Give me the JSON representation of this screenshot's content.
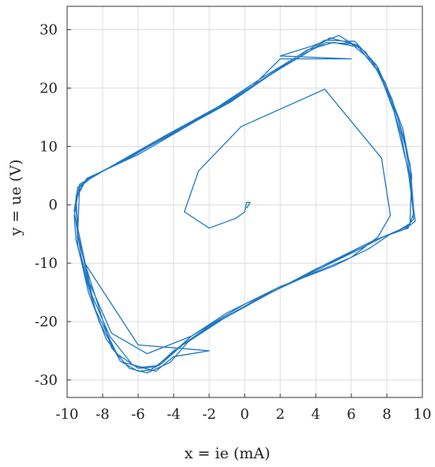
{
  "chart_data": {
    "type": "line",
    "title": "",
    "xlabel": "x = ie (mA)",
    "ylabel": "y = ue (V)",
    "xlim": [
      -10,
      10
    ],
    "ylim": [
      -33,
      34
    ],
    "xticks": [
      -10,
      -8,
      -6,
      -4,
      -2,
      0,
      2,
      4,
      6,
      8,
      10
    ],
    "yticks": [
      -30,
      -20,
      -10,
      0,
      10,
      20,
      30
    ],
    "grid": true,
    "series": [
      {
        "color": "#1f77c4",
        "points": [
          [
            0.1,
            -0.6
          ],
          [
            0.3,
            0.4
          ],
          [
            0.1,
            0.4
          ],
          [
            0.0,
            -1.2
          ],
          [
            -0.5,
            -2.3
          ],
          [
            -2.0,
            -4.0
          ],
          [
            -3.4,
            -1.2
          ],
          [
            -2.6,
            5.8
          ],
          [
            -0.2,
            13.4
          ],
          [
            4.5,
            19.8
          ],
          [
            7.7,
            8.0
          ],
          [
            8.2,
            -1.8
          ],
          [
            7.5,
            -5.5
          ],
          [
            6.0,
            -9.0
          ],
          [
            4.0,
            -11.5
          ],
          [
            0.0,
            -17.0
          ],
          [
            -3.0,
            -22.5
          ],
          [
            -5.5,
            -25.5
          ],
          [
            -7.5,
            -22.0
          ],
          [
            -8.8,
            -13.0
          ],
          [
            -9.4,
            -5.0
          ],
          [
            -9.3,
            3.0
          ],
          [
            -8.5,
            5.0
          ],
          [
            -6.5,
            8.0
          ],
          [
            -4.0,
            12.5
          ],
          [
            -1.0,
            17.5
          ],
          [
            1.5,
            22.5
          ],
          [
            3.5,
            26.5
          ],
          [
            5.0,
            27.8
          ],
          [
            6.5,
            27.0
          ],
          [
            7.5,
            23.5
          ],
          [
            8.3,
            18.0
          ],
          [
            9.0,
            11.0
          ],
          [
            9.4,
            3.0
          ],
          [
            9.5,
            -2.5
          ],
          [
            9.1,
            -3.8
          ],
          [
            8.3,
            -4.8
          ],
          [
            7.0,
            -7.5
          ],
          [
            5.0,
            -10.5
          ],
          [
            2.0,
            -14.0
          ],
          [
            -1.0,
            -18.5
          ],
          [
            -3.0,
            -22.5
          ],
          [
            -4.5,
            -26.5
          ],
          [
            -5.3,
            -28.3
          ],
          [
            -6.0,
            -28.5
          ],
          [
            -7.0,
            -26.8
          ],
          [
            -8.2,
            -20.0
          ],
          [
            -9.0,
            -12.0
          ],
          [
            -9.5,
            -6.0
          ],
          [
            -9.6,
            -2.0
          ],
          [
            -9.3,
            3.5
          ],
          [
            -8.7,
            4.6
          ],
          [
            -6.8,
            7.8
          ],
          [
            -4.2,
            12.0
          ],
          [
            -1.2,
            17.0
          ],
          [
            1.3,
            22.0
          ],
          [
            3.3,
            25.8
          ],
          [
            4.6,
            27.8
          ],
          [
            6.0,
            27.6
          ],
          [
            7.2,
            24.5
          ],
          [
            8.1,
            19.0
          ],
          [
            8.8,
            12.0
          ],
          [
            9.3,
            4.0
          ],
          [
            9.6,
            -2.8
          ],
          [
            9.0,
            -4.2
          ],
          [
            7.8,
            -5.5
          ],
          [
            6.2,
            -8.0
          ],
          [
            3.5,
            -12.0
          ],
          [
            0.5,
            -16.5
          ],
          [
            -2.0,
            -20.8
          ],
          [
            -4.0,
            -25.0
          ],
          [
            -5.0,
            -27.8
          ],
          [
            -6.0,
            -28.0
          ],
          [
            -7.2,
            -25.5
          ],
          [
            -8.4,
            -18.0
          ],
          [
            -9.2,
            -9.0
          ],
          [
            -9.6,
            -1.0
          ],
          [
            -9.4,
            3.0
          ],
          [
            -8.8,
            4.3
          ],
          [
            -7.0,
            7.5
          ],
          [
            -4.5,
            11.8
          ],
          [
            -1.5,
            16.8
          ],
          [
            1.0,
            21.8
          ],
          [
            3.0,
            25.5
          ],
          [
            4.5,
            28.2
          ],
          [
            6.2,
            28.0
          ],
          [
            7.4,
            24.0
          ],
          [
            8.4,
            16.0
          ],
          [
            9.2,
            6.0
          ],
          [
            9.5,
            -1.5
          ],
          [
            9.2,
            -4.0
          ],
          [
            8.0,
            -5.2
          ],
          [
            6.5,
            -7.5
          ],
          [
            4.0,
            -11.0
          ],
          [
            1.0,
            -15.8
          ],
          [
            -1.5,
            -20.0
          ],
          [
            -3.5,
            -24.0
          ],
          [
            -4.8,
            -27.5
          ],
          [
            -5.8,
            -27.8
          ],
          [
            -6.8,
            -27.0
          ],
          [
            -7.8,
            -23.0
          ],
          [
            -8.8,
            -15.0
          ],
          [
            -9.4,
            -7.0
          ],
          [
            -9.5,
            1.0
          ],
          [
            -8.9,
            4.5
          ],
          [
            -6.0,
            8.6
          ],
          [
            -2.5,
            14.8
          ],
          [
            0.5,
            20.5
          ],
          [
            2.0,
            25.0
          ],
          [
            6.0,
            25.0
          ],
          [
            2.0,
            25.5
          ],
          [
            3.8,
            27.2
          ],
          [
            5.3,
            29.0
          ],
          [
            6.8,
            26.2
          ],
          [
            7.9,
            21.0
          ],
          [
            8.9,
            13.0
          ],
          [
            9.4,
            5.0
          ],
          [
            9.3,
            -3.2
          ],
          [
            8.6,
            -4.5
          ],
          [
            7.2,
            -6.2
          ],
          [
            4.8,
            -9.8
          ],
          [
            1.5,
            -15.0
          ],
          [
            -1.2,
            -19.5
          ],
          [
            -3.2,
            -23.5
          ],
          [
            -4.2,
            -27.0
          ],
          [
            -5.5,
            -28.8
          ],
          [
            -6.5,
            -28.0
          ],
          [
            -7.5,
            -24.5
          ],
          [
            -9.0,
            -10.0
          ],
          [
            -6.0,
            -24.0
          ],
          [
            -2.0,
            -25.0
          ],
          [
            -4.0,
            -26.0
          ],
          [
            -5.0,
            -28.5
          ],
          [
            -6.3,
            -27.5
          ],
          [
            -7.6,
            -22.5
          ],
          [
            -8.6,
            -15.5
          ],
          [
            -9.4,
            -4.0
          ],
          [
            -9.5,
            1.5
          ],
          [
            -8.9,
            4.4
          ],
          [
            -6.6,
            8.0
          ],
          [
            -3.8,
            12.6
          ],
          [
            -0.8,
            17.6
          ],
          [
            1.6,
            22.6
          ],
          [
            3.6,
            26.2
          ],
          [
            4.8,
            28.6
          ],
          [
            6.3,
            27.4
          ],
          [
            7.6,
            22.5
          ],
          [
            8.6,
            15.0
          ],
          [
            9.3,
            7.0
          ],
          [
            9.5,
            -0.5
          ]
        ]
      }
    ]
  }
}
